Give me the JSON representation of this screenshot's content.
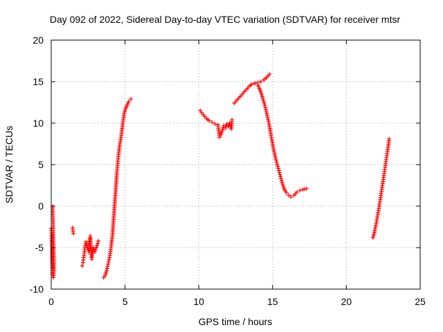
{
  "chart_data": {
    "type": "scatter",
    "title": "Day 092 of 2022, Sidereal Day-to-day VTEC variation (SDTVAR) for receiver mtsr",
    "xlabel": "GPS time / hours",
    "ylabel": "SDTVAR / TECUs",
    "xlim": [
      0,
      25
    ],
    "ylim": [
      -10,
      20
    ],
    "xticks": [
      0,
      5,
      10,
      15,
      20,
      25
    ],
    "yticks": [
      -10,
      -5,
      0,
      5,
      10,
      15,
      20
    ],
    "grid": true,
    "marker": "plus",
    "color": "#ff0000",
    "segments": [
      [
        [
          0.0,
          -2.7
        ],
        [
          0.02,
          -3.5
        ],
        [
          0.05,
          -5.0
        ],
        [
          0.08,
          -7.5
        ],
        [
          0.1,
          -8.3
        ],
        [
          0.15,
          -8.6
        ],
        [
          0.2,
          -7.8
        ],
        [
          0.1,
          0.0
        ]
      ],
      [
        [
          1.45,
          -2.6
        ],
        [
          1.5,
          -3.3
        ]
      ],
      [
        [
          2.1,
          -7.2
        ],
        [
          2.15,
          -6.8
        ],
        [
          2.2,
          -6.2
        ],
        [
          2.25,
          -5.5
        ],
        [
          2.3,
          -4.8
        ],
        [
          2.35,
          -4.3
        ],
        [
          2.45,
          -5.0
        ],
        [
          2.55,
          -5.5
        ],
        [
          2.6,
          -4.2
        ],
        [
          2.65,
          -3.6
        ],
        [
          2.7,
          -5.8
        ],
        [
          2.75,
          -6.4
        ],
        [
          2.85,
          -5.0
        ],
        [
          2.95,
          -5.5
        ],
        [
          3.05,
          -5.0
        ],
        [
          3.15,
          -4.5
        ],
        [
          3.2,
          -4.2
        ]
      ],
      [
        [
          3.55,
          -8.6
        ],
        [
          3.65,
          -8.4
        ],
        [
          3.75,
          -7.8
        ],
        [
          3.85,
          -7.0
        ],
        [
          3.95,
          -6.2
        ],
        [
          4.05,
          -5.0
        ],
        [
          4.15,
          -3.5
        ],
        [
          4.25,
          -1.0
        ],
        [
          4.35,
          1.5
        ],
        [
          4.45,
          4.0
        ],
        [
          4.55,
          6.0
        ],
        [
          4.65,
          7.5
        ],
        [
          4.75,
          8.5
        ],
        [
          4.85,
          10.0
        ],
        [
          4.95,
          11.2
        ],
        [
          5.05,
          11.8
        ],
        [
          5.15,
          12.2
        ],
        [
          5.25,
          12.6
        ],
        [
          5.4,
          12.9
        ]
      ],
      [
        [
          10.1,
          11.5
        ],
        [
          10.3,
          11.0
        ],
        [
          10.5,
          10.6
        ],
        [
          10.7,
          10.3
        ],
        [
          10.9,
          10.1
        ],
        [
          11.1,
          9.9
        ],
        [
          11.3,
          9.8
        ],
        [
          11.4,
          8.3
        ],
        [
          11.5,
          8.6
        ],
        [
          11.6,
          9.2
        ],
        [
          11.7,
          9.7
        ],
        [
          11.8,
          9.4
        ],
        [
          11.9,
          9.9
        ],
        [
          12.0,
          9.6
        ],
        [
          12.1,
          10.0
        ],
        [
          12.2,
          9.3
        ],
        [
          12.25,
          10.4
        ]
      ],
      [
        [
          12.4,
          12.4
        ],
        [
          12.6,
          12.8
        ],
        [
          12.8,
          13.2
        ],
        [
          13.0,
          13.6
        ],
        [
          13.2,
          14.0
        ],
        [
          13.4,
          14.4
        ],
        [
          13.6,
          14.7
        ],
        [
          13.8,
          14.8
        ],
        [
          14.0,
          14.6
        ],
        [
          14.15,
          14.0
        ],
        [
          14.3,
          13.2
        ],
        [
          14.45,
          12.3
        ],
        [
          14.6,
          11.2
        ],
        [
          14.75,
          10.0
        ],
        [
          14.9,
          8.5
        ],
        [
          15.05,
          7.0
        ],
        [
          15.2,
          5.8
        ],
        [
          15.35,
          4.8
        ],
        [
          15.5,
          3.8
        ],
        [
          15.65,
          2.8
        ],
        [
          15.8,
          2.0
        ],
        [
          15.95,
          1.6
        ],
        [
          16.1,
          1.3
        ],
        [
          16.25,
          1.1
        ],
        [
          16.45,
          1.3
        ],
        [
          16.65,
          1.7
        ],
        [
          16.85,
          1.9
        ],
        [
          17.05,
          2.0
        ],
        [
          17.3,
          2.1
        ]
      ],
      [
        [
          13.8,
          14.8
        ],
        [
          14.0,
          14.9
        ],
        [
          14.2,
          15.0
        ],
        [
          14.4,
          15.2
        ],
        [
          14.6,
          15.5
        ],
        [
          14.8,
          15.9
        ]
      ],
      [
        [
          21.8,
          -3.8
        ],
        [
          21.9,
          -3.2
        ],
        [
          22.0,
          -2.3
        ],
        [
          22.1,
          -1.3
        ],
        [
          22.2,
          -0.3
        ],
        [
          22.3,
          0.8
        ],
        [
          22.4,
          2.0
        ],
        [
          22.5,
          3.2
        ],
        [
          22.6,
          4.4
        ],
        [
          22.7,
          5.6
        ],
        [
          22.8,
          6.8
        ],
        [
          22.9,
          8.1
        ]
      ]
    ]
  }
}
